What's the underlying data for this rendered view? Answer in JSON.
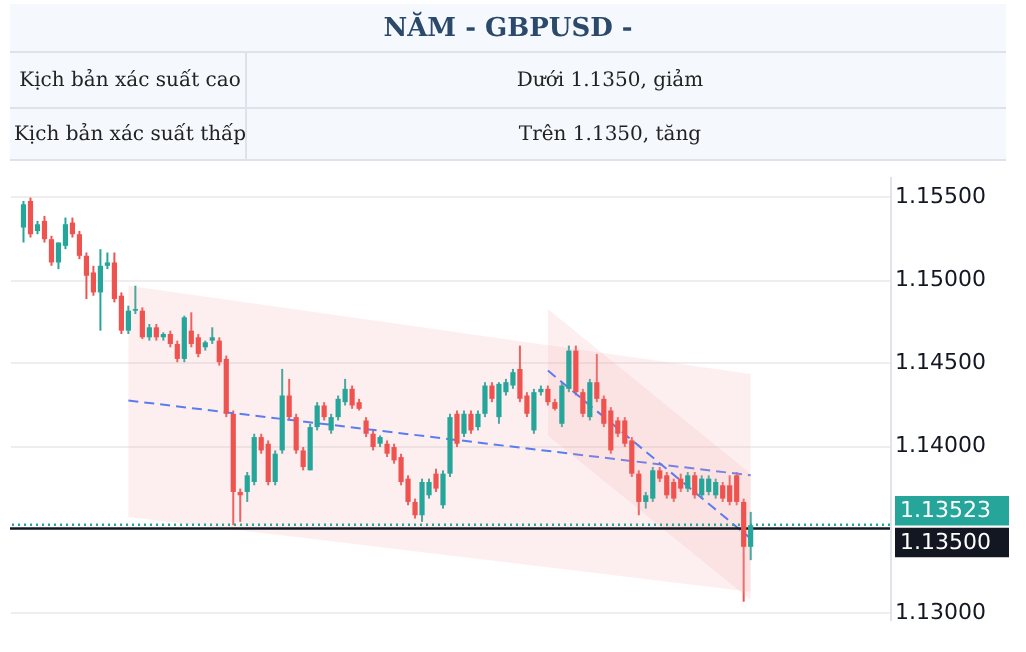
{
  "chart_data": {
    "type": "candlestick",
    "title": "NĂM  -  GBPUSD -",
    "annotations": [
      "Kịch bản xác suất cao",
      "Dưới 1.1350, giảm",
      "Kịch bản xác suất thấp",
      "Trên 1.1350, tăng"
    ],
    "categories": [
      null,
      null,
      null,
      null,
      null,
      null,
      null,
      null,
      null,
      null,
      null,
      null,
      null,
      null,
      null,
      null,
      null,
      null,
      null,
      null,
      null,
      null,
      null,
      null,
      null,
      null,
      null,
      null,
      null,
      null,
      null,
      null,
      null,
      null,
      null,
      null,
      null,
      null,
      null,
      null,
      null,
      null,
      null,
      null,
      null,
      null,
      null,
      null,
      null,
      null,
      null,
      null,
      null,
      null,
      null,
      null,
      null,
      null,
      null,
      null,
      null,
      null,
      null,
      null,
      null,
      null,
      null,
      null,
      null,
      null,
      null,
      null,
      null,
      null,
      null,
      null,
      null,
      null,
      null,
      null,
      null,
      null,
      null,
      null,
      null,
      null,
      null,
      null,
      null,
      null,
      null,
      null,
      null,
      null,
      null,
      null,
      null,
      null,
      null,
      null,
      null,
      null,
      null,
      null,
      null,
      null,
      null,
      null,
      null,
      null,
      null,
      null,
      null,
      null,
      null,
      null,
      null,
      null,
      null,
      null,
      null,
      null,
      null
    ],
    "ohlc": [
      [
        1.1531,
        1.1547,
        1.1522,
        1.1545
      ],
      [
        1.1547,
        1.1549,
        1.1525,
        1.1527
      ],
      [
        1.1529,
        1.1535,
        1.1527,
        1.1533
      ],
      [
        1.1535,
        1.1538,
        1.1522,
        1.1524
      ],
      [
        1.1524,
        1.1526,
        1.1508,
        1.151
      ],
      [
        1.151,
        1.1522,
        1.1506,
        1.1522
      ],
      [
        1.152,
        1.1537,
        1.1518,
        1.1533
      ],
      [
        1.1534,
        1.1537,
        1.1525,
        1.1527
      ],
      [
        1.1527,
        1.1529,
        1.1512,
        1.1514
      ],
      [
        1.1514,
        1.1516,
        1.1488,
        1.1502
      ],
      [
        1.1504,
        1.1508,
        1.149,
        1.1492
      ],
      [
        1.1492,
        1.1518,
        1.1469,
        1.1508
      ],
      [
        1.1508,
        1.1516,
        1.1506,
        1.151
      ],
      [
        1.151,
        1.1516,
        1.1486,
        1.1488
      ],
      [
        1.149,
        1.1492,
        1.1467,
        1.1469
      ],
      [
        1.1469,
        1.1484,
        1.1467,
        1.1481
      ],
      [
        1.1481,
        1.1496,
        1.1479,
        1.1482
      ],
      [
        1.1481,
        1.1483,
        1.1464,
        1.1465
      ],
      [
        1.1465,
        1.1473,
        1.1463,
        1.1471
      ],
      [
        1.1471,
        1.1473,
        1.1463,
        1.1465
      ],
      [
        1.1465,
        1.1468,
        1.1463,
        1.1467
      ],
      [
        1.1467,
        1.1469,
        1.1459,
        1.1461
      ],
      [
        1.1461,
        1.1463,
        1.145,
        1.1452
      ],
      [
        1.1452,
        1.1478,
        1.145,
        1.1477
      ],
      [
        1.1469,
        1.148,
        1.1459,
        1.1461
      ],
      [
        1.1465,
        1.1467,
        1.1453,
        1.1455
      ],
      [
        1.1459,
        1.1463,
        1.1457,
        1.1462
      ],
      [
        1.1463,
        1.1471,
        1.1461,
        1.1465
      ],
      [
        1.1463,
        1.1465,
        1.1448,
        1.145
      ],
      [
        1.1452,
        1.1454,
        1.1417,
        1.1419
      ],
      [
        1.1419,
        1.1421,
        1.1352,
        1.1372
      ],
      [
        1.1372,
        1.1374,
        1.1354,
        1.137
      ],
      [
        1.1372,
        1.1384,
        1.1366,
        1.1382
      ],
      [
        1.1378,
        1.1407,
        1.1376,
        1.1405
      ],
      [
        1.1405,
        1.1407,
        1.1395,
        1.1397
      ],
      [
        1.1401,
        1.1403,
        1.1376,
        1.1378
      ],
      [
        1.1378,
        1.1397,
        1.1376,
        1.1395
      ],
      [
        1.1397,
        1.1446,
        1.1395,
        1.143
      ],
      [
        1.143,
        1.144,
        1.1415,
        1.1417
      ],
      [
        1.1417,
        1.1419,
        1.1395,
        1.1397
      ],
      [
        1.1397,
        1.1399,
        1.1385,
        1.1387
      ],
      [
        1.1385,
        1.1413,
        1.1385,
        1.1411
      ],
      [
        1.1411,
        1.1426,
        1.1409,
        1.1424
      ],
      [
        1.1424,
        1.1426,
        1.1415,
        1.1417
      ],
      [
        1.1409,
        1.1419,
        1.1407,
        1.1417
      ],
      [
        1.1417,
        1.143,
        1.1415,
        1.1428
      ],
      [
        1.1426,
        1.144,
        1.1424,
        1.1434
      ],
      [
        1.1434,
        1.1436,
        1.1422,
        1.1424
      ],
      [
        1.1426,
        1.1428,
        1.1421,
        1.1422
      ],
      [
        1.1415,
        1.1417,
        1.1405,
        1.1407
      ],
      [
        1.1407,
        1.1409,
        1.1397,
        1.1399
      ],
      [
        1.1401,
        1.1406,
        1.1399,
        1.1405
      ],
      [
        1.1401,
        1.1403,
        1.1393,
        1.1395
      ],
      [
        1.1399,
        1.1401,
        1.1389,
        1.1391
      ],
      [
        1.1393,
        1.1395,
        1.1376,
        1.1378
      ],
      [
        1.138,
        1.1382,
        1.1364,
        1.1366
      ],
      [
        1.1366,
        1.1368,
        1.1356,
        1.1358
      ],
      [
        1.1358,
        1.138,
        1.1354,
        1.1378
      ],
      [
        1.137,
        1.138,
        1.1368,
        1.1378
      ],
      [
        1.1383,
        1.1386,
        1.1372,
        1.1374
      ],
      [
        1.1364,
        1.1385,
        1.1362,
        1.1383
      ],
      [
        1.1383,
        1.1419,
        1.1381,
        1.1417
      ],
      [
        1.1419,
        1.1421,
        1.1399,
        1.1401
      ],
      [
        1.1407,
        1.1421,
        1.1405,
        1.1419
      ],
      [
        1.1419,
        1.1421,
        1.1407,
        1.1409
      ],
      [
        1.1411,
        1.1421,
        1.1409,
        1.1419
      ],
      [
        1.1419,
        1.1438,
        1.1417,
        1.1436
      ],
      [
        1.1436,
        1.1438,
        1.1426,
        1.1428
      ],
      [
        1.1417,
        1.1438,
        1.1413,
        1.1437
      ],
      [
        1.1432,
        1.144,
        1.143,
        1.1438
      ],
      [
        1.1436,
        1.1446,
        1.1434,
        1.1444
      ],
      [
        1.1446,
        1.146,
        1.1426,
        1.1428
      ],
      [
        1.143,
        1.1432,
        1.1417,
        1.1419
      ],
      [
        1.1409,
        1.1434,
        1.1407,
        1.1432
      ],
      [
        1.1432,
        1.1436,
        1.143,
        1.1434
      ],
      [
        1.1434,
        1.1436,
        1.1424,
        1.1426
      ],
      [
        1.1426,
        1.1428,
        1.1421,
        1.1422
      ],
      [
        1.1413,
        1.1438,
        1.1411,
        1.1436
      ],
      [
        1.1434,
        1.146,
        1.1432,
        1.1457
      ],
      [
        1.1457,
        1.146,
        1.143,
        1.1432
      ],
      [
        1.1432,
        1.1434,
        1.1417,
        1.1419
      ],
      [
        1.1417,
        1.144,
        1.1415,
        1.1438
      ],
      [
        1.1438,
        1.1455,
        1.1426,
        1.1428
      ],
      [
        1.1428,
        1.143,
        1.1411,
        1.1413
      ],
      [
        1.1421,
        1.1423,
        1.1395,
        1.1397
      ],
      [
        1.1415,
        1.1417,
        1.1405,
        1.1407
      ],
      [
        1.1415,
        1.1417,
        1.1399,
        1.1401
      ],
      [
        1.1403,
        1.1405,
        1.1381,
        1.1383
      ],
      [
        1.1383,
        1.1385,
        1.1358,
        1.1366
      ],
      [
        1.1366,
        1.1372,
        1.1362,
        1.137
      ],
      [
        1.1368,
        1.1387,
        1.1366,
        1.1385
      ],
      [
        1.1385,
        1.1387,
        1.1378,
        1.138
      ],
      [
        1.1382,
        1.1384,
        1.1368,
        1.137
      ],
      [
        1.1378,
        1.138,
        1.1366,
        1.1368
      ],
      [
        1.138,
        1.1383,
        1.1372,
        1.1374
      ],
      [
        1.1374,
        1.1384,
        1.1372,
        1.1382
      ],
      [
        1.1382,
        1.1384,
        1.1368,
        1.137
      ],
      [
        1.137,
        1.1382,
        1.1368,
        1.138
      ],
      [
        1.1372,
        1.1382,
        1.137,
        1.138
      ],
      [
        1.137,
        1.138,
        1.1368,
        1.1378
      ],
      [
        1.1376,
        1.1378,
        1.1366,
        1.1368
      ],
      [
        1.1376,
        1.1382,
        1.1364,
        1.1366
      ],
      [
        1.1382,
        1.1384,
        1.1364,
        1.1366
      ],
      [
        1.1366,
        1.1368,
        1.1306,
        1.1339
      ],
      [
        1.1339,
        1.136,
        1.1331,
        1.1352
      ],
      null,
      null,
      null,
      null,
      null,
      null,
      null,
      null,
      null,
      null,
      null,
      null,
      null,
      null,
      null,
      null,
      null,
      null
    ],
    "series": [
      {
        "type": "line",
        "color": "#5b7cf0",
        "line_style": "dashed",
        "values": [
          null,
          null,
          null,
          null,
          null,
          null,
          null,
          null,
          null,
          null,
          null,
          null,
          null,
          null,
          null,
          1.1427,
          null,
          null,
          null,
          null,
          null,
          null,
          null,
          null,
          null,
          null,
          null,
          null,
          null,
          null,
          null,
          null,
          null,
          null,
          null,
          null,
          null,
          null,
          null,
          null,
          null,
          null,
          null,
          null,
          null,
          null,
          null,
          null,
          null,
          null,
          null,
          null,
          null,
          null,
          null,
          null,
          null,
          null,
          null,
          null,
          null,
          null,
          null,
          null,
          null,
          null,
          null,
          null,
          null,
          null,
          null,
          null,
          null,
          null,
          null,
          null,
          null,
          null,
          null,
          null,
          null,
          null,
          null,
          null,
          null,
          null,
          null,
          null,
          null,
          null,
          null,
          null,
          null,
          null,
          null,
          null,
          null,
          null,
          null,
          null,
          null,
          null,
          null,
          null,
          1.1382,
          null,
          null,
          null,
          null,
          null,
          null,
          null,
          null,
          null,
          null,
          null,
          null,
          null,
          null,
          null,
          null,
          null,
          null
        ],
        "lower": [
          null,
          null,
          null,
          null,
          null,
          null,
          null,
          null,
          null,
          null,
          null,
          null,
          null,
          null,
          null,
          1.1357,
          null,
          null,
          null,
          null,
          null,
          null,
          null,
          null,
          null,
          null,
          null,
          null,
          null,
          null,
          null,
          null,
          null,
          null,
          null,
          null,
          null,
          null,
          null,
          null,
          null,
          null,
          null,
          null,
          null,
          null,
          null,
          null,
          null,
          null,
          null,
          null,
          null,
          null,
          null,
          null,
          null,
          null,
          null,
          null,
          null,
          null,
          null,
          null,
          null,
          null,
          null,
          null,
          null,
          null,
          null,
          null,
          null,
          null,
          null,
          null,
          null,
          null,
          null,
          null,
          null,
          null,
          null,
          null,
          null,
          null,
          null,
          null,
          null,
          null,
          null,
          null,
          null,
          null,
          null,
          null,
          null,
          null,
          null,
          null,
          null,
          null,
          null,
          null,
          1.1312,
          null,
          null,
          null,
          null,
          null,
          null,
          null,
          null,
          null,
          null,
          null,
          null,
          null,
          null,
          null,
          null,
          null,
          null
        ],
        "upper": [
          null,
          null,
          null,
          null,
          null,
          null,
          null,
          null,
          null,
          null,
          null,
          null,
          null,
          null,
          null,
          1.1496,
          null,
          null,
          null,
          null,
          null,
          null,
          null,
          null,
          null,
          null,
          null,
          null,
          null,
          null,
          null,
          null,
          null,
          null,
          null,
          null,
          null,
          null,
          null,
          null,
          null,
          null,
          null,
          null,
          null,
          null,
          null,
          null,
          null,
          null,
          null,
          null,
          null,
          null,
          null,
          null,
          null,
          null,
          null,
          null,
          null,
          null,
          null,
          null,
          null,
          null,
          null,
          null,
          null,
          null,
          null,
          null,
          null,
          null,
          null,
          null,
          null,
          null,
          null,
          null,
          null,
          null,
          null,
          null,
          null,
          null,
          null,
          null,
          null,
          null,
          null,
          null,
          null,
          null,
          null,
          null,
          null,
          null,
          null,
          null,
          null,
          null,
          null,
          null,
          1.1443,
          null,
          null,
          null,
          null,
          null,
          null,
          null,
          null,
          null,
          null,
          null,
          null,
          null,
          null,
          null,
          null,
          null,
          null
        ]
      },
      {
        "type": "line",
        "color": "#5b7cf0",
        "line_style": "dashed",
        "values": [
          null,
          null,
          null,
          null,
          null,
          null,
          null,
          null,
          null,
          null,
          null,
          null,
          null,
          null,
          null,
          null,
          null,
          null,
          null,
          null,
          null,
          null,
          null,
          null,
          null,
          null,
          null,
          null,
          null,
          null,
          null,
          null,
          null,
          null,
          null,
          null,
          null,
          null,
          null,
          null,
          null,
          null,
          null,
          null,
          null,
          null,
          null,
          null,
          null,
          null,
          null,
          null,
          null,
          null,
          null,
          null,
          null,
          null,
          null,
          null,
          null,
          null,
          null,
          null,
          null,
          null,
          null,
          null,
          null,
          null,
          null,
          null,
          null,
          null,
          null,
          1.1445,
          null,
          null,
          null,
          null,
          null,
          null,
          null,
          null,
          null,
          null,
          null,
          null,
          null,
          null,
          null,
          null,
          null,
          null,
          null,
          null,
          null,
          null,
          null,
          null,
          null,
          null,
          null,
          null,
          1.1344,
          null,
          null,
          null,
          null,
          null,
          null,
          null,
          null,
          null,
          null,
          null,
          null,
          null,
          null,
          null,
          null,
          null,
          null
        ],
        "lower": [
          null,
          null,
          null,
          null,
          null,
          null,
          null,
          null,
          null,
          null,
          null,
          null,
          null,
          null,
          null,
          null,
          null,
          null,
          null,
          null,
          null,
          null,
          null,
          null,
          null,
          null,
          null,
          null,
          null,
          null,
          null,
          null,
          null,
          null,
          null,
          null,
          null,
          null,
          null,
          null,
          null,
          null,
          null,
          null,
          null,
          null,
          null,
          null,
          null,
          null,
          null,
          null,
          null,
          null,
          null,
          null,
          null,
          null,
          null,
          null,
          null,
          null,
          null,
          null,
          null,
          null,
          null,
          null,
          null,
          null,
          null,
          null,
          null,
          null,
          null,
          1.1406,
          null,
          null,
          null,
          null,
          null,
          null,
          null,
          null,
          null,
          null,
          null,
          null,
          null,
          null,
          null,
          null,
          null,
          null,
          null,
          null,
          null,
          null,
          null,
          null,
          null,
          null,
          null,
          null,
          1.1307,
          null,
          null,
          null,
          null,
          null,
          null,
          null,
          null,
          null,
          null,
          null,
          null,
          null,
          null,
          null,
          null,
          null,
          null
        ],
        "upper": [
          null,
          null,
          null,
          null,
          null,
          null,
          null,
          null,
          null,
          null,
          null,
          null,
          null,
          null,
          null,
          null,
          null,
          null,
          null,
          null,
          null,
          null,
          null,
          null,
          null,
          null,
          null,
          null,
          null,
          null,
          null,
          null,
          null,
          null,
          null,
          null,
          null,
          null,
          null,
          null,
          null,
          null,
          null,
          null,
          null,
          null,
          null,
          null,
          null,
          null,
          null,
          null,
          null,
          null,
          null,
          null,
          null,
          null,
          null,
          null,
          null,
          null,
          null,
          null,
          null,
          null,
          null,
          null,
          null,
          null,
          null,
          null,
          null,
          null,
          null,
          1.1482,
          null,
          null,
          null,
          null,
          null,
          null,
          null,
          null,
          null,
          null,
          null,
          null,
          null,
          null,
          null,
          null,
          null,
          null,
          null,
          null,
          null,
          null,
          null,
          null,
          null,
          null,
          null,
          null,
          1.1383,
          null,
          null,
          null,
          null,
          null,
          null,
          null,
          null,
          null,
          null,
          null,
          null,
          null,
          null,
          null,
          null,
          null,
          null
        ]
      }
    ],
    "ylim": [
      1.1295,
      1.1562
    ],
    "yticks": [
      {
        "value": 1.13,
        "label": "1.13000"
      },
      {
        "value": 1.14,
        "label": "1.14000"
      },
      {
        "value": 1.145,
        "label": "1.14500"
      },
      {
        "value": 1.15,
        "label": "1.15000"
      },
      {
        "value": 1.155,
        "label": "1.15500"
      }
    ],
    "ref_lines": [
      {
        "axis": "y",
        "value": 1.135,
        "label": "1.13500",
        "color": "#131722",
        "line_style": "solid"
      },
      {
        "axis": "y",
        "value": 1.13523,
        "label": "1.13523",
        "color": "#26a69a",
        "line_style": "dotted"
      }
    ],
    "grid": "y",
    "tick_labels": "y"
  }
}
